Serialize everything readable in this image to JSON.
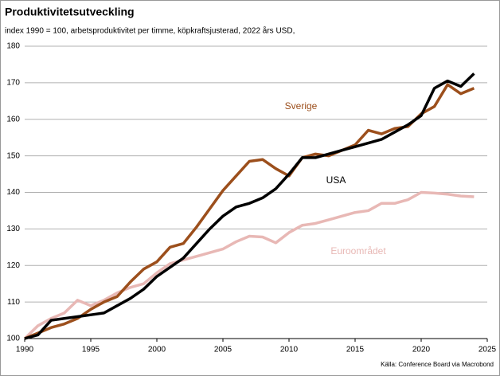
{
  "chart_data": {
    "type": "line",
    "title": "Produktivitetsutveckling",
    "subtitle": "index 1990 = 100, arbetsproduktivitet per timme, köpkraftsjusterad, 2022 års USD,",
    "source": "Källa: Conference Board via Macrobond",
    "x": [
      1990,
      1991,
      1992,
      1993,
      1994,
      1995,
      1996,
      1997,
      1998,
      1999,
      2000,
      2001,
      2002,
      2003,
      2004,
      2005,
      2006,
      2007,
      2008,
      2009,
      2010,
      2011,
      2012,
      2013,
      2014,
      2015,
      2016,
      2017,
      2018,
      2019,
      2020,
      2021,
      2022,
      2023,
      2024
    ],
    "series": [
      {
        "name": "Sverige",
        "color": "#9c4f1c",
        "values": [
          100,
          101.5,
          103,
          104,
          105.5,
          108,
          110,
          111.5,
          115.5,
          119,
          121,
          125,
          126,
          130.5,
          135.5,
          140.5,
          144.5,
          148.5,
          149,
          146.5,
          144.5,
          149.5,
          150.5,
          150,
          151.5,
          153,
          157,
          156,
          157.5,
          158,
          161.5,
          163.5,
          169.5,
          167,
          168.5
        ]
      },
      {
        "name": "USA",
        "color": "#000000",
        "values": [
          100,
          101,
          105,
          105.5,
          106,
          106.5,
          107,
          109,
          111,
          113.5,
          117,
          119.5,
          122,
          126,
          130,
          133.5,
          136,
          137,
          138.5,
          141,
          145,
          149.5,
          149.5,
          150.5,
          151.5,
          152.5,
          153.5,
          154.5,
          156.5,
          158.5,
          161,
          168.5,
          170.5,
          169,
          172.5
        ]
      },
      {
        "name": "Euroområdet",
        "color": "#e8b8b5",
        "values": [
          100,
          103.5,
          105.5,
          107,
          110.5,
          109,
          110.5,
          112.5,
          114,
          115,
          118,
          120.5,
          121.5,
          122.5,
          123.5,
          124.5,
          126.5,
          128,
          127.8,
          126.2,
          129,
          131,
          131.5,
          132.5,
          133.5,
          134.5,
          135,
          137,
          137,
          138,
          140,
          139.8,
          139.5,
          139,
          138.8
        ]
      }
    ],
    "xlim": [
      1990,
      2025
    ],
    "xticks": [
      1990,
      1995,
      2000,
      2005,
      2010,
      2015,
      2020,
      2025
    ],
    "ylim": [
      100,
      180
    ],
    "yticks": [
      100,
      110,
      120,
      130,
      140,
      150,
      160,
      170,
      180
    ],
    "grid": true
  }
}
